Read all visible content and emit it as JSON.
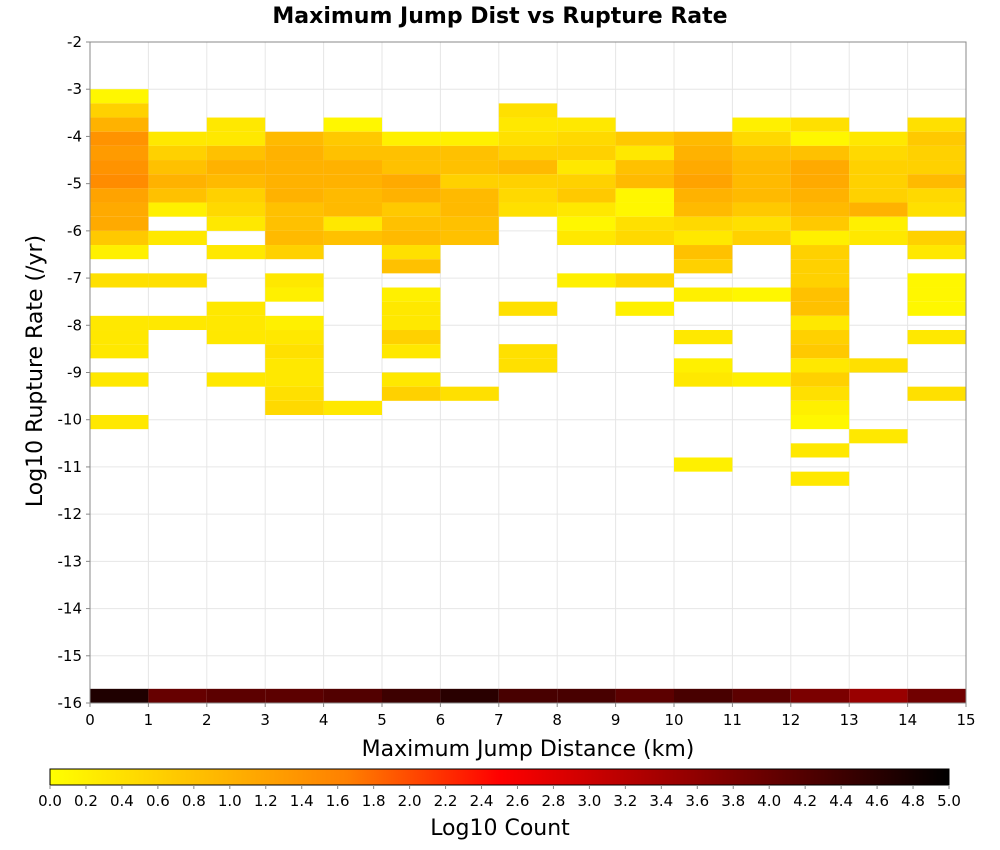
{
  "chart_data": {
    "type": "heatmap",
    "title": "Maximum Jump Dist vs Rupture Rate",
    "xlabel": "Maximum Jump Distance (km)",
    "ylabel": "Log10 Rupture Rate (/yr)",
    "xlim": [
      0,
      15
    ],
    "ylim": [
      -16,
      -2
    ],
    "x_ticks": [
      "0",
      "1",
      "2",
      "3",
      "4",
      "5",
      "6",
      "7",
      "8",
      "9",
      "10",
      "11",
      "12",
      "13",
      "14",
      "15"
    ],
    "y_ticks": [
      "-2",
      "-3",
      "-4",
      "-5",
      "-6",
      "-7",
      "-8",
      "-9",
      "-10",
      "-11",
      "-12",
      "-13",
      "-14",
      "-15",
      "-16"
    ],
    "grid": true,
    "x_bin_width": 1,
    "y_bin_height": 0.3,
    "colorbar": {
      "label": "Log10 Count",
      "min": 0.0,
      "max": 5.0,
      "ticks": [
        "0.0",
        "0.2",
        "0.4",
        "0.6",
        "0.8",
        "1.0",
        "1.2",
        "1.4",
        "1.6",
        "1.8",
        "2.0",
        "2.2",
        "2.4",
        "2.6",
        "2.8",
        "3.0",
        "3.2",
        "3.4",
        "3.6",
        "3.8",
        "4.0",
        "4.2",
        "4.4",
        "4.6",
        "4.8",
        "5.0"
      ],
      "colors": [
        "#ffff00",
        "#ff8000",
        "#ff0000",
        "#800000",
        "#000000"
      ]
    },
    "note_values": "each cell: x = bin start (km), y = bin lower edge (log10 rate), v = log10 count",
    "cells": [
      {
        "x": 0,
        "y": -3.3,
        "v": 0.1
      },
      {
        "x": 0,
        "y": -3.6,
        "v": 0.6
      },
      {
        "x": 0,
        "y": -3.9,
        "v": 1.0
      },
      {
        "x": 0,
        "y": -4.2,
        "v": 1.4
      },
      {
        "x": 0,
        "y": -4.5,
        "v": 1.3
      },
      {
        "x": 0,
        "y": -4.8,
        "v": 1.4
      },
      {
        "x": 0,
        "y": -5.1,
        "v": 1.5
      },
      {
        "x": 0,
        "y": -5.4,
        "v": 1.2
      },
      {
        "x": 0,
        "y": -5.7,
        "v": 1.1
      },
      {
        "x": 0,
        "y": -6.0,
        "v": 1.1
      },
      {
        "x": 0,
        "y": -6.3,
        "v": 0.7
      },
      {
        "x": 0,
        "y": -6.6,
        "v": 0.2
      },
      {
        "x": 0,
        "y": -7.2,
        "v": 0.4
      },
      {
        "x": 0,
        "y": -8.1,
        "v": 0.3
      },
      {
        "x": 0,
        "y": -8.4,
        "v": 0.3
      },
      {
        "x": 0,
        "y": -8.7,
        "v": 0.3
      },
      {
        "x": 0,
        "y": -9.3,
        "v": 0.3
      },
      {
        "x": 0,
        "y": -10.2,
        "v": 0.3
      },
      {
        "x": 1,
        "y": -4.2,
        "v": 0.3
      },
      {
        "x": 1,
        "y": -4.5,
        "v": 0.6
      },
      {
        "x": 1,
        "y": -4.8,
        "v": 0.8
      },
      {
        "x": 1,
        "y": -5.1,
        "v": 1.0
      },
      {
        "x": 1,
        "y": -5.4,
        "v": 0.8
      },
      {
        "x": 1,
        "y": -5.7,
        "v": 0.2
      },
      {
        "x": 1,
        "y": -6.3,
        "v": 0.3
      },
      {
        "x": 1,
        "y": -7.2,
        "v": 0.4
      },
      {
        "x": 1,
        "y": -8.1,
        "v": 0.3
      },
      {
        "x": 2,
        "y": -3.9,
        "v": 0.3
      },
      {
        "x": 2,
        "y": -4.2,
        "v": 0.3
      },
      {
        "x": 2,
        "y": -4.5,
        "v": 0.8
      },
      {
        "x": 2,
        "y": -4.8,
        "v": 1.0
      },
      {
        "x": 2,
        "y": -5.1,
        "v": 0.9
      },
      {
        "x": 2,
        "y": -5.4,
        "v": 0.6
      },
      {
        "x": 2,
        "y": -5.7,
        "v": 0.5
      },
      {
        "x": 2,
        "y": -6.0,
        "v": 0.3
      },
      {
        "x": 2,
        "y": -6.6,
        "v": 0.3
      },
      {
        "x": 2,
        "y": -7.8,
        "v": 0.3
      },
      {
        "x": 2,
        "y": -8.1,
        "v": 0.3
      },
      {
        "x": 2,
        "y": -8.4,
        "v": 0.3
      },
      {
        "x": 2,
        "y": -9.3,
        "v": 0.3
      },
      {
        "x": 3,
        "y": -4.2,
        "v": 0.9
      },
      {
        "x": 3,
        "y": -4.5,
        "v": 1.0
      },
      {
        "x": 3,
        "y": -4.8,
        "v": 1.0
      },
      {
        "x": 3,
        "y": -5.1,
        "v": 1.0
      },
      {
        "x": 3,
        "y": -5.4,
        "v": 1.0
      },
      {
        "x": 3,
        "y": -5.7,
        "v": 0.8
      },
      {
        "x": 3,
        "y": -6.0,
        "v": 0.8
      },
      {
        "x": 3,
        "y": -6.3,
        "v": 0.9
      },
      {
        "x": 3,
        "y": -6.6,
        "v": 0.6
      },
      {
        "x": 3,
        "y": -7.2,
        "v": 0.3
      },
      {
        "x": 3,
        "y": -7.5,
        "v": 0.2
      },
      {
        "x": 3,
        "y": -8.1,
        "v": 0.2
      },
      {
        "x": 3,
        "y": -8.4,
        "v": 0.3
      },
      {
        "x": 3,
        "y": -8.7,
        "v": 0.4
      },
      {
        "x": 3,
        "y": -9.0,
        "v": 0.3
      },
      {
        "x": 3,
        "y": -9.3,
        "v": 0.3
      },
      {
        "x": 3,
        "y": -9.6,
        "v": 0.4
      },
      {
        "x": 3,
        "y": -9.9,
        "v": 0.5
      },
      {
        "x": 4,
        "y": -3.9,
        "v": 0.1
      },
      {
        "x": 4,
        "y": -4.2,
        "v": 0.7
      },
      {
        "x": 4,
        "y": -4.5,
        "v": 0.8
      },
      {
        "x": 4,
        "y": -4.8,
        "v": 1.0
      },
      {
        "x": 4,
        "y": -5.1,
        "v": 1.0
      },
      {
        "x": 4,
        "y": -5.4,
        "v": 0.9
      },
      {
        "x": 4,
        "y": -5.7,
        "v": 0.9
      },
      {
        "x": 4,
        "y": -6.0,
        "v": 0.3
      },
      {
        "x": 4,
        "y": -6.3,
        "v": 0.8
      },
      {
        "x": 4,
        "y": -9.9,
        "v": 0.3
      },
      {
        "x": 5,
        "y": -4.2,
        "v": 0.2
      },
      {
        "x": 5,
        "y": -4.5,
        "v": 0.8
      },
      {
        "x": 5,
        "y": -4.8,
        "v": 0.8
      },
      {
        "x": 5,
        "y": -5.1,
        "v": 1.1
      },
      {
        "x": 5,
        "y": -5.4,
        "v": 1.0
      },
      {
        "x": 5,
        "y": -5.7,
        "v": 0.7
      },
      {
        "x": 5,
        "y": -6.0,
        "v": 0.8
      },
      {
        "x": 5,
        "y": -6.3,
        "v": 0.9
      },
      {
        "x": 5,
        "y": -6.6,
        "v": 0.4
      },
      {
        "x": 5,
        "y": -6.9,
        "v": 0.8
      },
      {
        "x": 5,
        "y": -7.5,
        "v": 0.2
      },
      {
        "x": 5,
        "y": -7.8,
        "v": 0.3
      },
      {
        "x": 5,
        "y": -8.1,
        "v": 0.3
      },
      {
        "x": 5,
        "y": -8.4,
        "v": 0.6
      },
      {
        "x": 5,
        "y": -8.7,
        "v": 0.3
      },
      {
        "x": 5,
        "y": -9.3,
        "v": 0.3
      },
      {
        "x": 5,
        "y": -9.6,
        "v": 0.6
      },
      {
        "x": 6,
        "y": -4.2,
        "v": 0.2
      },
      {
        "x": 6,
        "y": -4.5,
        "v": 0.8
      },
      {
        "x": 6,
        "y": -4.8,
        "v": 0.8
      },
      {
        "x": 6,
        "y": -5.1,
        "v": 0.6
      },
      {
        "x": 6,
        "y": -5.4,
        "v": 0.9
      },
      {
        "x": 6,
        "y": -5.7,
        "v": 0.9
      },
      {
        "x": 6,
        "y": -6.0,
        "v": 0.8
      },
      {
        "x": 6,
        "y": -6.3,
        "v": 0.8
      },
      {
        "x": 6,
        "y": -9.6,
        "v": 0.4
      },
      {
        "x": 7,
        "y": -3.6,
        "v": 0.4
      },
      {
        "x": 7,
        "y": -3.9,
        "v": 0.3
      },
      {
        "x": 7,
        "y": -4.2,
        "v": 0.4
      },
      {
        "x": 7,
        "y": -4.5,
        "v": 0.6
      },
      {
        "x": 7,
        "y": -4.8,
        "v": 0.9
      },
      {
        "x": 7,
        "y": -5.1,
        "v": 0.6
      },
      {
        "x": 7,
        "y": -5.4,
        "v": 0.5
      },
      {
        "x": 7,
        "y": -5.7,
        "v": 0.4
      },
      {
        "x": 7,
        "y": -7.8,
        "v": 0.4
      },
      {
        "x": 7,
        "y": -8.7,
        "v": 0.4
      },
      {
        "x": 7,
        "y": -9.0,
        "v": 0.4
      },
      {
        "x": 8,
        "y": -3.9,
        "v": 0.3
      },
      {
        "x": 8,
        "y": -4.2,
        "v": 0.5
      },
      {
        "x": 8,
        "y": -4.5,
        "v": 0.6
      },
      {
        "x": 8,
        "y": -4.8,
        "v": 0.3
      },
      {
        "x": 8,
        "y": -5.1,
        "v": 0.6
      },
      {
        "x": 8,
        "y": -5.4,
        "v": 0.7
      },
      {
        "x": 8,
        "y": -5.7,
        "v": 0.3
      },
      {
        "x": 8,
        "y": -6.0,
        "v": 0.1
      },
      {
        "x": 8,
        "y": -6.3,
        "v": 0.3
      },
      {
        "x": 8,
        "y": -7.2,
        "v": 0.2
      },
      {
        "x": 9,
        "y": -4.2,
        "v": 0.7
      },
      {
        "x": 9,
        "y": -4.5,
        "v": 0.3
      },
      {
        "x": 9,
        "y": -4.8,
        "v": 0.8
      },
      {
        "x": 9,
        "y": -5.1,
        "v": 0.9
      },
      {
        "x": 9,
        "y": -5.4,
        "v": 0.1
      },
      {
        "x": 9,
        "y": -5.7,
        "v": 0.1
      },
      {
        "x": 9,
        "y": -6.0,
        "v": 0.4
      },
      {
        "x": 9,
        "y": -6.3,
        "v": 0.5
      },
      {
        "x": 9,
        "y": -7.2,
        "v": 0.5
      },
      {
        "x": 9,
        "y": -7.8,
        "v": 0.2
      },
      {
        "x": 10,
        "y": -4.2,
        "v": 0.9
      },
      {
        "x": 10,
        "y": -4.5,
        "v": 1.0
      },
      {
        "x": 10,
        "y": -4.8,
        "v": 1.1
      },
      {
        "x": 10,
        "y": -5.1,
        "v": 1.2
      },
      {
        "x": 10,
        "y": -5.4,
        "v": 1.0
      },
      {
        "x": 10,
        "y": -5.7,
        "v": 0.9
      },
      {
        "x": 10,
        "y": -6.0,
        "v": 0.5
      },
      {
        "x": 10,
        "y": -6.3,
        "v": 0.3
      },
      {
        "x": 10,
        "y": -6.6,
        "v": 0.8
      },
      {
        "x": 10,
        "y": -6.9,
        "v": 0.6
      },
      {
        "x": 10,
        "y": -7.5,
        "v": 0.2
      },
      {
        "x": 10,
        "y": -8.4,
        "v": 0.3
      },
      {
        "x": 10,
        "y": -9.0,
        "v": 0.2
      },
      {
        "x": 10,
        "y": -9.3,
        "v": 0.3
      },
      {
        "x": 10,
        "y": -11.1,
        "v": 0.2
      },
      {
        "x": 11,
        "y": -3.9,
        "v": 0.2
      },
      {
        "x": 11,
        "y": -4.2,
        "v": 0.5
      },
      {
        "x": 11,
        "y": -4.5,
        "v": 0.8
      },
      {
        "x": 11,
        "y": -4.8,
        "v": 0.9
      },
      {
        "x": 11,
        "y": -5.1,
        "v": 0.9
      },
      {
        "x": 11,
        "y": -5.4,
        "v": 0.9
      },
      {
        "x": 11,
        "y": -5.7,
        "v": 0.7
      },
      {
        "x": 11,
        "y": -6.0,
        "v": 0.4
      },
      {
        "x": 11,
        "y": -6.3,
        "v": 0.6
      },
      {
        "x": 11,
        "y": -7.5,
        "v": 0.1
      },
      {
        "x": 11,
        "y": -9.3,
        "v": 0.2
      },
      {
        "x": 12,
        "y": -3.9,
        "v": 0.4
      },
      {
        "x": 12,
        "y": -4.2,
        "v": 0.1
      },
      {
        "x": 12,
        "y": -4.5,
        "v": 0.8
      },
      {
        "x": 12,
        "y": -4.8,
        "v": 1.1
      },
      {
        "x": 12,
        "y": -5.1,
        "v": 1.1
      },
      {
        "x": 12,
        "y": -5.4,
        "v": 1.0
      },
      {
        "x": 12,
        "y": -5.7,
        "v": 0.9
      },
      {
        "x": 12,
        "y": -6.0,
        "v": 0.7
      },
      {
        "x": 12,
        "y": -6.3,
        "v": 0.2
      },
      {
        "x": 12,
        "y": -6.6,
        "v": 0.6
      },
      {
        "x": 12,
        "y": -6.9,
        "v": 0.6
      },
      {
        "x": 12,
        "y": -7.2,
        "v": 0.6
      },
      {
        "x": 12,
        "y": -7.5,
        "v": 0.8
      },
      {
        "x": 12,
        "y": -7.8,
        "v": 0.8
      },
      {
        "x": 12,
        "y": -8.1,
        "v": 0.3
      },
      {
        "x": 12,
        "y": -8.4,
        "v": 0.6
      },
      {
        "x": 12,
        "y": -8.7,
        "v": 0.7
      },
      {
        "x": 12,
        "y": -9.0,
        "v": 0.3
      },
      {
        "x": 12,
        "y": -9.3,
        "v": 0.6
      },
      {
        "x": 12,
        "y": -9.6,
        "v": 0.4
      },
      {
        "x": 12,
        "y": -9.9,
        "v": 0.2
      },
      {
        "x": 12,
        "y": -10.2,
        "v": 0.1
      },
      {
        "x": 12,
        "y": -10.8,
        "v": 0.3
      },
      {
        "x": 12,
        "y": -11.4,
        "v": 0.3
      },
      {
        "x": 13,
        "y": -4.2,
        "v": 0.3
      },
      {
        "x": 13,
        "y": -4.5,
        "v": 0.5
      },
      {
        "x": 13,
        "y": -4.8,
        "v": 0.6
      },
      {
        "x": 13,
        "y": -5.1,
        "v": 0.6
      },
      {
        "x": 13,
        "y": -5.4,
        "v": 0.6
      },
      {
        "x": 13,
        "y": -5.7,
        "v": 1.0
      },
      {
        "x": 13,
        "y": -6.0,
        "v": 0.2
      },
      {
        "x": 13,
        "y": -6.3,
        "v": 0.3
      },
      {
        "x": 13,
        "y": -9.0,
        "v": 0.4
      },
      {
        "x": 13,
        "y": -10.5,
        "v": 0.3
      },
      {
        "x": 14,
        "y": -3.9,
        "v": 0.4
      },
      {
        "x": 14,
        "y": -4.2,
        "v": 0.7
      },
      {
        "x": 14,
        "y": -4.5,
        "v": 0.6
      },
      {
        "x": 14,
        "y": -4.8,
        "v": 0.6
      },
      {
        "x": 14,
        "y": -5.1,
        "v": 0.9
      },
      {
        "x": 14,
        "y": -5.4,
        "v": 0.5
      },
      {
        "x": 14,
        "y": -5.7,
        "v": 0.4
      },
      {
        "x": 14,
        "y": -6.3,
        "v": 0.6
      },
      {
        "x": 14,
        "y": -6.6,
        "v": 0.3
      },
      {
        "x": 14,
        "y": -7.2,
        "v": 0.1
      },
      {
        "x": 14,
        "y": -7.5,
        "v": 0.1
      },
      {
        "x": 14,
        "y": -7.8,
        "v": 0.1
      },
      {
        "x": 14,
        "y": -8.4,
        "v": 0.3
      },
      {
        "x": 14,
        "y": -9.6,
        "v": 0.4
      }
    ],
    "bottom_row": {
      "y": -16.0,
      "values": [
        4.7,
        4.0,
        4.1,
        4.1,
        4.2,
        4.4,
        4.6,
        4.3,
        4.3,
        4.1,
        4.3,
        4.1,
        3.8,
        3.5,
        3.9
      ]
    }
  }
}
